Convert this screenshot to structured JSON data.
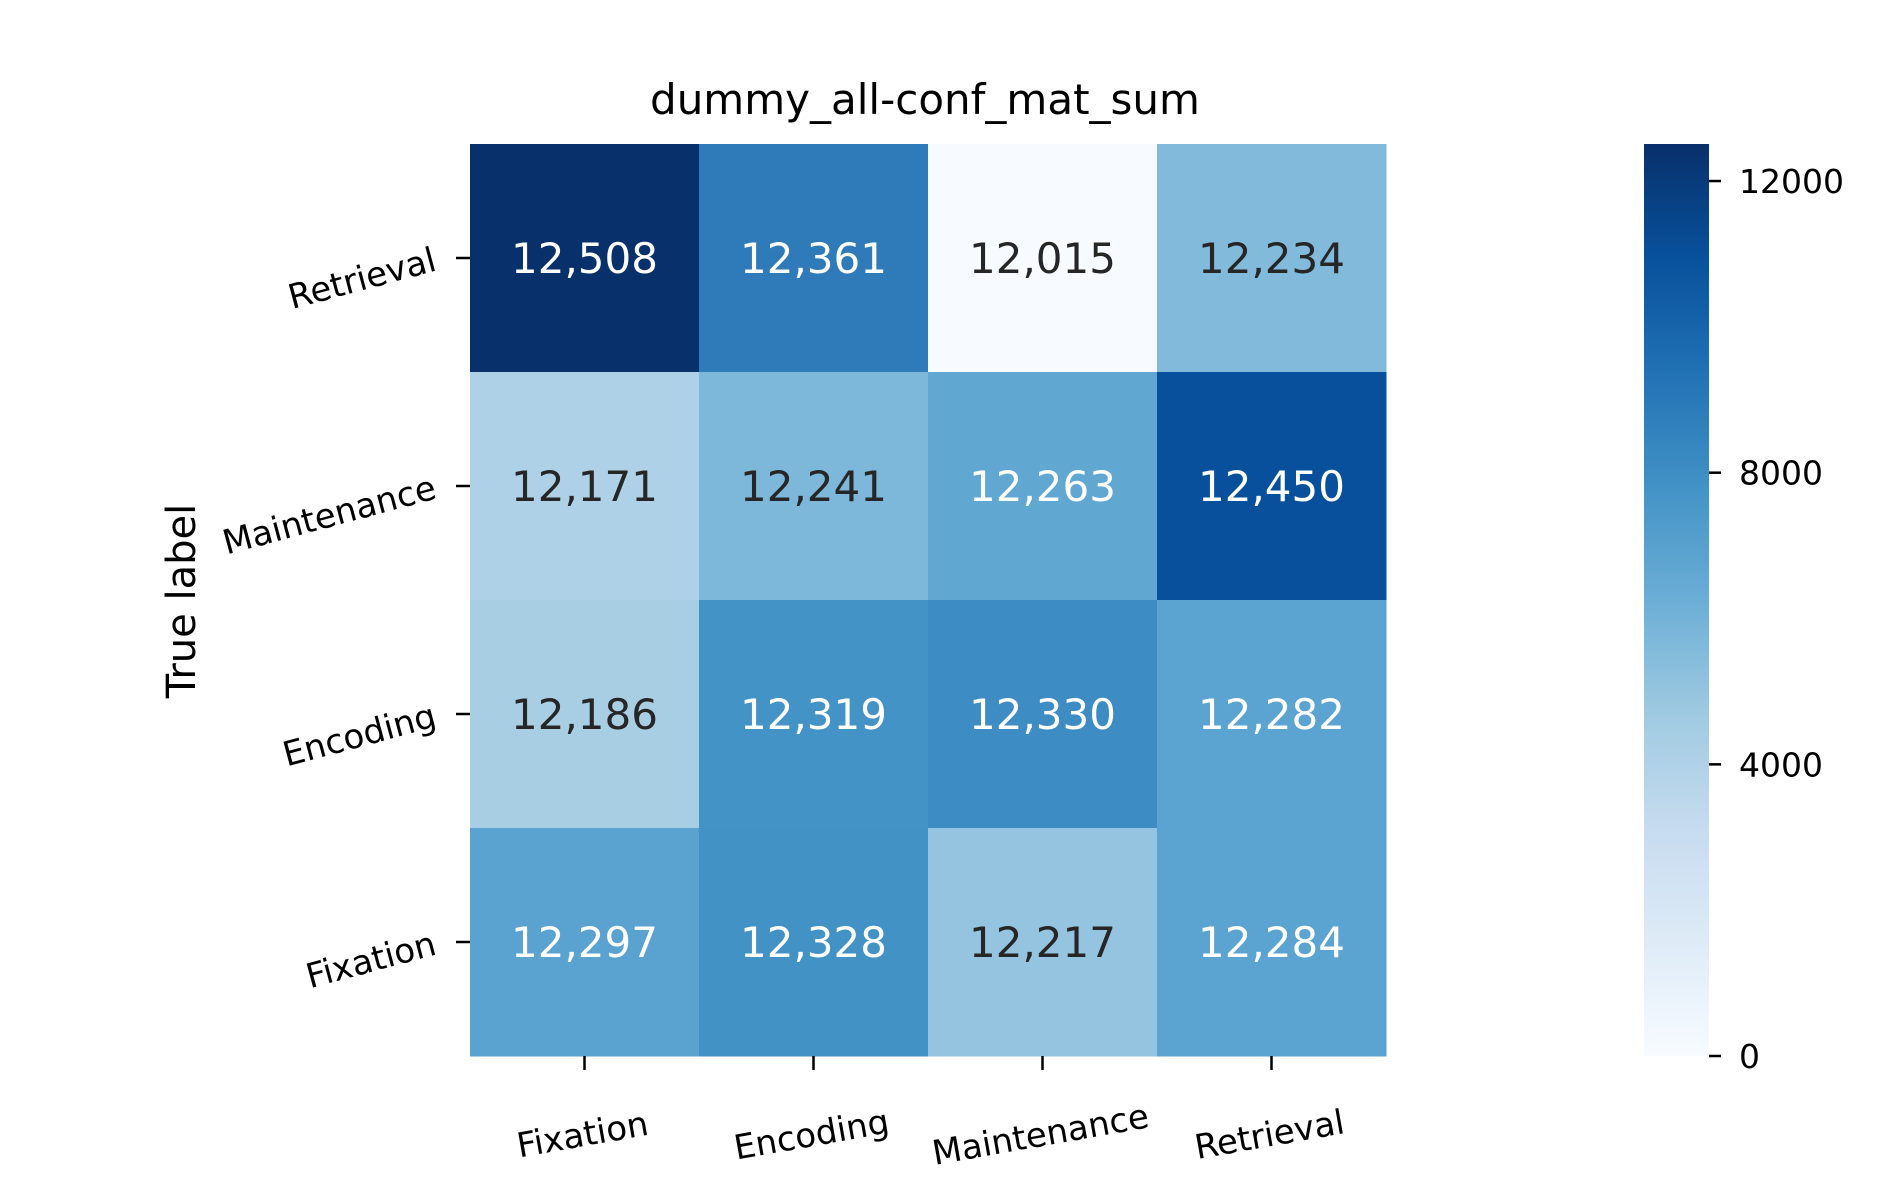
{
  "chart_data": {
    "type": "heatmap",
    "title": "dummy_all-conf_mat_sum",
    "ylabel": "True label",
    "xlabel": "",
    "x_categories": [
      "Fixation",
      "Encoding",
      "Maintenance",
      "Retrieval"
    ],
    "y_categories_top_to_bottom": [
      "Retrieval",
      "Maintenance",
      "Encoding",
      "Fixation"
    ],
    "rows": [
      {
        "label": "Retrieval",
        "values": [
          12508,
          12361,
          12015,
          12234
        ],
        "text": [
          "12,508",
          "12,361",
          "12,015",
          "12,234"
        ]
      },
      {
        "label": "Maintenance",
        "values": [
          12171,
          12241,
          12263,
          12450
        ],
        "text": [
          "12,171",
          "12,241",
          "12,263",
          "12,450"
        ]
      },
      {
        "label": "Encoding",
        "values": [
          12186,
          12319,
          12330,
          12282
        ],
        "text": [
          "12,186",
          "12,319",
          "12,330",
          "12,282"
        ]
      },
      {
        "label": "Fixation",
        "values": [
          12297,
          12328,
          12217,
          12284
        ],
        "text": [
          "12,297",
          "12,328",
          "12,217",
          "12,284"
        ]
      }
    ],
    "cell_colors": [
      [
        "#08306b",
        "#2f7bba",
        "#f7fbff",
        "#82badb"
      ],
      [
        "#aed1e7",
        "#7db8da",
        "#60a7d2",
        "#08509b"
      ],
      [
        "#a8cee4",
        "#4493c7",
        "#3d8dc4",
        "#5ba3d0"
      ],
      [
        "#5aa2cf",
        "#4292c6",
        "#94c4df",
        "#5ba3d0"
      ]
    ],
    "text_colors": [
      [
        "#ffffff",
        "#ffffff",
        "#262626",
        "#262626"
      ],
      [
        "#262626",
        "#262626",
        "#ffffff",
        "#ffffff"
      ],
      [
        "#262626",
        "#ffffff",
        "#ffffff",
        "#ffffff"
      ],
      [
        "#ffffff",
        "#ffffff",
        "#262626",
        "#ffffff"
      ]
    ],
    "colorbar": {
      "colormap": "Blues",
      "range": [
        0,
        12508
      ],
      "ticks": [
        0,
        4000,
        8000,
        12000
      ],
      "tick_labels": [
        "0",
        "4000",
        "8000",
        "12000"
      ],
      "placement": "right"
    }
  }
}
